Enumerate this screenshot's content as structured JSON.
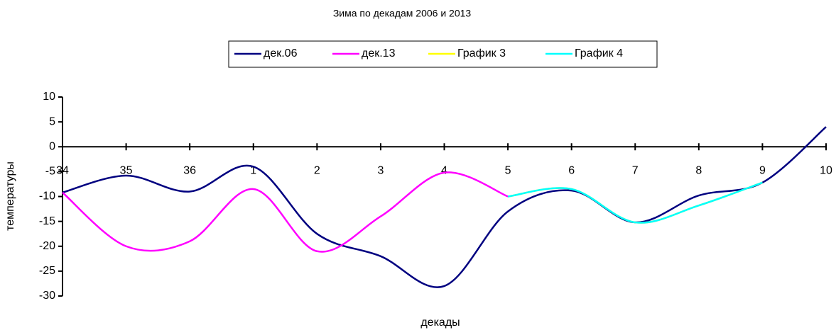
{
  "chart_data": {
    "type": "line",
    "title": "Зима по декадам 2006 и 2013",
    "x_label": "декады",
    "y_label": "температуры",
    "categories": [
      "34",
      "35",
      "36",
      "1",
      "2",
      "3",
      "4",
      "5",
      "6",
      "7",
      "8",
      "9",
      "10"
    ],
    "series": [
      {
        "name": "дек.06",
        "color": "#000080",
        "values": [
          -9.2,
          -5.8,
          -9,
          -4,
          -17.5,
          -22,
          -28,
          -13,
          -8.8,
          -15.2,
          -9.8,
          -7.2,
          4
        ]
      },
      {
        "name": "дек.13",
        "color": "#ff00ff",
        "values": [
          -9.2,
          -20,
          -19,
          -8.5,
          -21,
          -14,
          -5.2,
          -10,
          null,
          null,
          null,
          null,
          null
        ]
      },
      {
        "name": "График 3",
        "color": "#ffff00",
        "values": [
          null,
          null,
          null,
          null,
          null,
          null,
          null,
          -10,
          -8.5,
          -15.2,
          -11.8,
          -7.2,
          null
        ]
      },
      {
        "name": "График 4",
        "color": "#00ffff",
        "values": [
          null,
          null,
          null,
          null,
          null,
          null,
          null,
          -10,
          -8.5,
          -15.2,
          -11.8,
          -7.2,
          null
        ]
      }
    ],
    "ylim": [
      -30,
      10
    ],
    "yticks": [
      -30,
      -25,
      -20,
      -15,
      -10,
      -5,
      0,
      5,
      10
    ],
    "smooth": true,
    "legend": "top"
  }
}
